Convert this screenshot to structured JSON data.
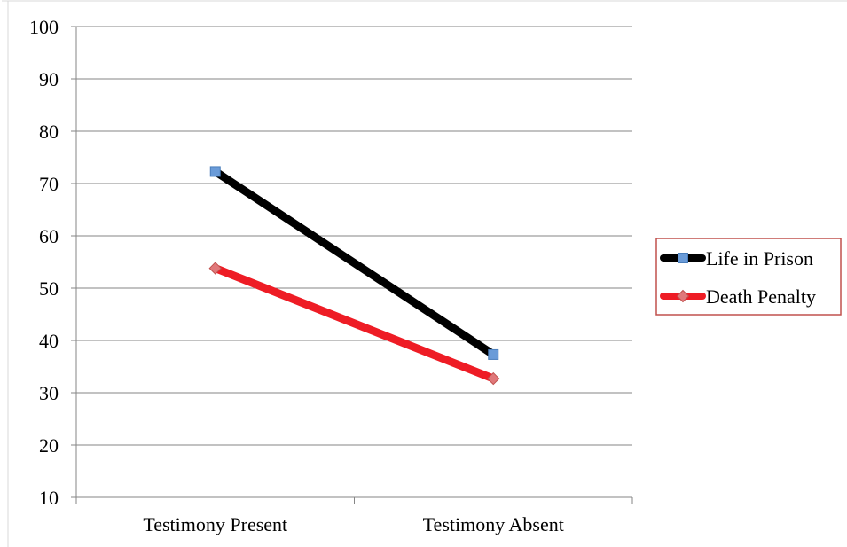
{
  "chart_data": {
    "type": "line",
    "title": "",
    "xlabel": "",
    "ylabel": "",
    "categories": [
      "Testimony Present",
      "Testimony Absent"
    ],
    "ylim": [
      10,
      100
    ],
    "y_ticks": [
      10,
      20,
      30,
      40,
      50,
      60,
      70,
      80,
      90,
      100
    ],
    "grid": true,
    "legend_position": "right",
    "series": [
      {
        "name": "Life in Prison",
        "values": [
          72.3,
          37.3
        ],
        "line_color": "#000000",
        "marker": "square",
        "marker_color": "#6a9bd8"
      },
      {
        "name": "Death Penalty",
        "values": [
          53.8,
          32.7
        ],
        "line_color": "#ee1c25",
        "marker": "diamond",
        "marker_color": "#e0787a"
      }
    ],
    "legend_border_color": "#c0504d"
  }
}
